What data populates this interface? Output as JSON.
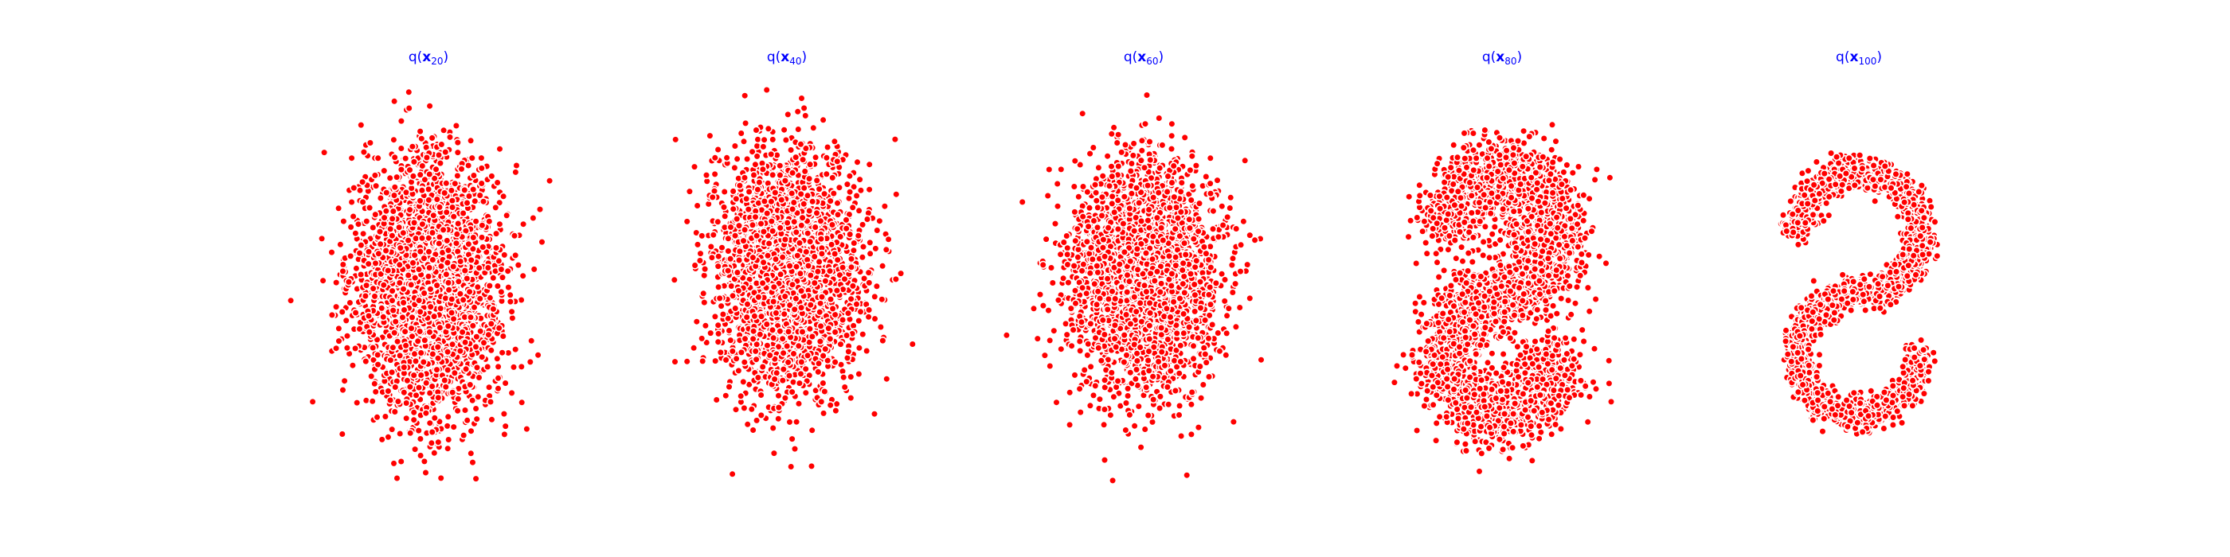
{
  "chart_data": [
    {
      "type": "scatter",
      "title": "q(x_20)",
      "title_parts": {
        "pre": "q(",
        "var": "x",
        "sub": "20",
        "post": ")"
      },
      "distribution": "isotropic gaussian",
      "n_points": 3000,
      "mean": [
        0.0,
        0.1
      ],
      "std": [
        0.62,
        1.0
      ],
      "xlim": [
        -2.5,
        2.5
      ],
      "ylim": [
        -3.0,
        3.0
      ],
      "grid": false,
      "axes_visible": false,
      "marker_color": "#ff0000",
      "marker_edge": "#ffffff"
    },
    {
      "type": "scatter",
      "title": "q(x_40)",
      "title_parts": {
        "pre": "q(",
        "var": "x",
        "sub": "40",
        "post": ")"
      },
      "distribution": "isotropic gaussian",
      "n_points": 3000,
      "mean": [
        0.0,
        0.3
      ],
      "std": [
        0.6,
        0.9
      ],
      "xlim": [
        -2.5,
        2.5
      ],
      "ylim": [
        -3.0,
        3.0
      ],
      "grid": false,
      "axes_visible": false,
      "marker_color": "#ff0000",
      "marker_edge": "#ffffff"
    },
    {
      "type": "scatter",
      "title": "q(x_60)",
      "title_parts": {
        "pre": "q(",
        "var": "x",
        "sub": "60",
        "post": ")"
      },
      "distribution": "isotropic gaussian",
      "n_points": 3000,
      "mean": [
        0.0,
        0.2
      ],
      "std": [
        0.62,
        0.88
      ],
      "xlim": [
        -2.5,
        2.5
      ],
      "ylim": [
        -3.0,
        3.0
      ],
      "grid": false,
      "axes_visible": false,
      "marker_color": "#ff0000",
      "marker_edge": "#ffffff"
    },
    {
      "type": "scatter",
      "title": "q(x_80)",
      "title_parts": {
        "pre": "q(",
        "var": "x",
        "sub": "80",
        "post": ")"
      },
      "distribution": "blurred swiss-roll / s-curve",
      "n_points": 3000,
      "xlim": [
        -2.5,
        2.5
      ],
      "ylim": [
        -3.0,
        3.0
      ],
      "grid": false,
      "axes_visible": false,
      "marker_color": "#ff0000",
      "marker_edge": "#ffffff"
    },
    {
      "type": "scatter",
      "title": "q(x_100)",
      "title_parts": {
        "pre": "q(",
        "var": "x",
        "sub": "100",
        "post": ")"
      },
      "distribution": "s-curve",
      "n_points": 3000,
      "xlim": [
        -2.5,
        2.5
      ],
      "ylim": [
        -3.0,
        3.0
      ],
      "grid": false,
      "axes_visible": false,
      "marker_color": "#ff0000",
      "marker_edge": "#ffffff"
    }
  ]
}
